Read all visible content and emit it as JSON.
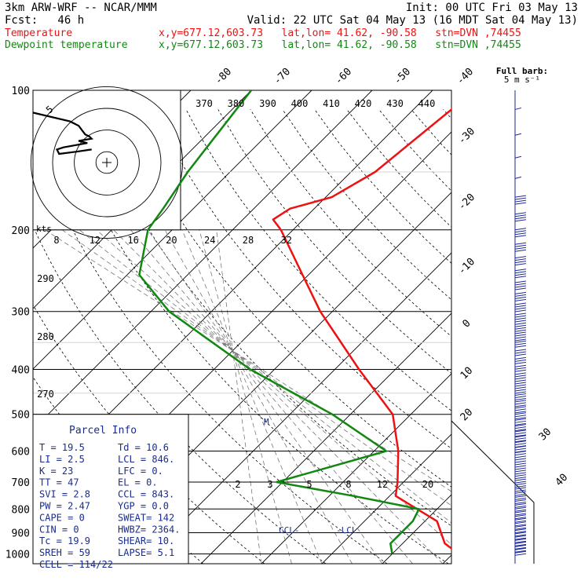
{
  "header": {
    "model": "3km ARW-WRF -- NCAR/MMM",
    "init": "Init: 00 UTC Fri 03 May 13",
    "fcst": "Fcst:   46 h",
    "valid": "Valid: 22 UTC Sat 04 May 13 (16 MDT Sat 04 May 13)",
    "temp_label": "Temperature",
    "dew_label": "Dewpoint temperature",
    "location": "x,y=677.12,603.73   lat,lon= 41.62, -90.58   stn=DVN ,74455"
  },
  "colors": {
    "temperature": "#ee1111",
    "dewpoint": "#118811",
    "parcel": "#1a2d8f",
    "grid": "#000000",
    "barb": "#1f2a9a"
  },
  "barb_title": "Full barb:",
  "barb_unit": "5 m s⁻¹",
  "kts_label": "kts",
  "parcel_title": "Parcel Info",
  "parcel_rows": [
    {
      "left": "T   =    19.5",
      "right": "Td =  10.6"
    },
    {
      "left": "LI  =     2.5",
      "right": "LCL =  846."
    },
    {
      "left": "K   =      23",
      "right": "LFC =    0."
    },
    {
      "left": "TT  =      47",
      "right": "EL  =    0."
    },
    {
      "left": "SVI =     2.8",
      "right": "CCL =  843."
    },
    {
      "left": "PW  =    2.47",
      "right": "YGP =   0.0"
    },
    {
      "left": "CAPE =      0",
      "right": "SWEAT=   142"
    },
    {
      "left": "CIN  =      0",
      "right": "HWBZ= 2364."
    },
    {
      "left": "Tc  =    19.9",
      "right": "SHEAR=   10."
    },
    {
      "left": "SREH =     59",
      "right": "LAPSE=   5.1"
    },
    {
      "left": "CELL = 114/22",
      "right": ""
    }
  ],
  "level_labels": {
    "ccl": "CCL",
    "lcl": "LCL",
    "parcel_mark": "M"
  },
  "chart_data": {
    "type": "line",
    "title": "",
    "ylabel": "",
    "pressure_levels": [
      100,
      200,
      300,
      400,
      500,
      600,
      700,
      800,
      900,
      1000
    ],
    "isotherms": [
      -80,
      -70,
      -60,
      -50,
      -40,
      -30,
      -20,
      -10,
      0,
      10,
      20,
      30,
      40
    ],
    "dry_adiabat_labels": [
      370,
      380,
      390,
      400,
      410,
      420,
      430,
      440
    ],
    "dry_adiabat_labels_left": [
      290,
      280,
      270
    ],
    "mixing_ratio_labels": [
      2,
      3,
      5,
      8,
      12,
      20
    ],
    "hodograph_speed_labels": [
      8,
      12,
      16,
      20,
      24,
      28,
      32
    ],
    "hodograph_ring_label": 5,
    "series": [
      {
        "name": "Temperature",
        "points": [
          [
            100,
            -53
          ],
          [
            150,
            -56
          ],
          [
            170,
            -59
          ],
          [
            180,
            -64
          ],
          [
            190,
            -65
          ],
          [
            200,
            -62
          ],
          [
            250,
            -51
          ],
          [
            300,
            -42
          ],
          [
            400,
            -26
          ],
          [
            500,
            -13
          ],
          [
            600,
            -6
          ],
          [
            700,
            -1
          ],
          [
            750,
            1
          ],
          [
            850,
            12
          ],
          [
            950,
            17
          ],
          [
            1000,
            21
          ]
        ]
      },
      {
        "name": "Dewpoint temperature",
        "points": [
          [
            100,
            -90
          ],
          [
            150,
            -87
          ],
          [
            180,
            -85
          ],
          [
            200,
            -84
          ],
          [
            250,
            -78
          ],
          [
            300,
            -67
          ],
          [
            400,
            -44
          ],
          [
            500,
            -23
          ],
          [
            600,
            -8
          ],
          [
            700,
            -21
          ],
          [
            750,
            -6
          ],
          [
            800,
            7
          ],
          [
            850,
            8
          ],
          [
            950,
            8
          ],
          [
            1000,
            10
          ]
        ]
      }
    ],
    "hodograph": [
      [
        -34,
        23
      ],
      [
        -17,
        19
      ],
      [
        -13,
        17
      ],
      [
        -10,
        13
      ],
      [
        -8,
        12
      ],
      [
        -7,
        11
      ],
      [
        -13,
        10
      ],
      [
        -9,
        9
      ],
      [
        -20,
        7
      ],
      [
        -23,
        6
      ],
      [
        -22,
        4
      ],
      [
        -14,
        5
      ],
      [
        -7,
        6
      ]
    ]
  }
}
